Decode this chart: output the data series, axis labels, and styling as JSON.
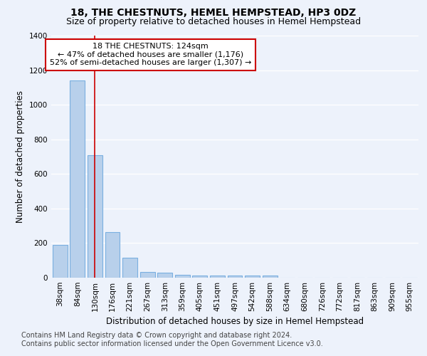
{
  "title": "18, THE CHESTNUTS, HEMEL HEMPSTEAD, HP3 0DZ",
  "subtitle": "Size of property relative to detached houses in Hemel Hempstead",
  "xlabel": "Distribution of detached houses by size in Hemel Hempstead",
  "ylabel": "Number of detached properties",
  "footer_line1": "Contains HM Land Registry data © Crown copyright and database right 2024.",
  "footer_line2": "Contains public sector information licensed under the Open Government Licence v3.0.",
  "bar_labels": [
    "38sqm",
    "84sqm",
    "130sqm",
    "176sqm",
    "221sqm",
    "267sqm",
    "313sqm",
    "359sqm",
    "405sqm",
    "451sqm",
    "497sqm",
    "542sqm",
    "588sqm",
    "634sqm",
    "680sqm",
    "726sqm",
    "772sqm",
    "817sqm",
    "863sqm",
    "909sqm",
    "955sqm"
  ],
  "bar_values": [
    190,
    1140,
    710,
    265,
    115,
    35,
    27,
    15,
    12,
    12,
    12,
    12,
    12,
    0,
    0,
    0,
    0,
    0,
    0,
    0,
    0
  ],
  "bar_color": "#b8d0eb",
  "bar_edge_color": "#7aafe0",
  "property_line_x": 2,
  "annotation_line1": "18 THE CHESTNUTS: 124sqm",
  "annotation_line2": "← 47% of detached houses are smaller (1,176)",
  "annotation_line3": "52% of semi-detached houses are larger (1,307) →",
  "vline_color": "#cc0000",
  "annotation_box_edge_color": "#cc0000",
  "ylim": [
    0,
    1400
  ],
  "yticks": [
    0,
    200,
    400,
    600,
    800,
    1000,
    1200,
    1400
  ],
  "background_color": "#edf2fb",
  "grid_color": "#ffffff",
  "title_fontsize": 10,
  "subtitle_fontsize": 9,
  "axis_label_fontsize": 8.5,
  "tick_fontsize": 7.5,
  "annotation_fontsize": 8,
  "footer_fontsize": 7
}
